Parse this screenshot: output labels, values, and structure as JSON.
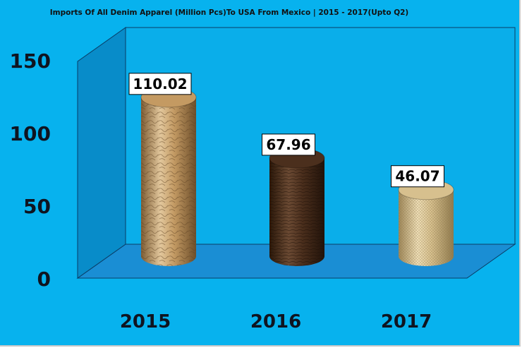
{
  "chart_data": {
    "type": "bar",
    "title": "Imports Of All Denim Apparel (Million Pcs)To USA From Mexico | 2015 - 2017(Upto Q2)",
    "categories": [
      "2015",
      "2016",
      "2017"
    ],
    "values": [
      110.02,
      67.96,
      46.07
    ],
    "data_labels": [
      "110.02",
      "67.96",
      "46.07"
    ],
    "ylim": [
      0,
      150
    ],
    "yticks": [
      "0",
      "50",
      "100",
      "150"
    ],
    "grid": false,
    "legend": "none",
    "bar_shape": "cylinder",
    "colors": {
      "background": "#07b2ee",
      "back_wall": "#0aaeea",
      "floor": "#1a8ed4",
      "bars": [
        "#c49a62",
        "#4b2f1d",
        "#d7c08e"
      ]
    }
  }
}
